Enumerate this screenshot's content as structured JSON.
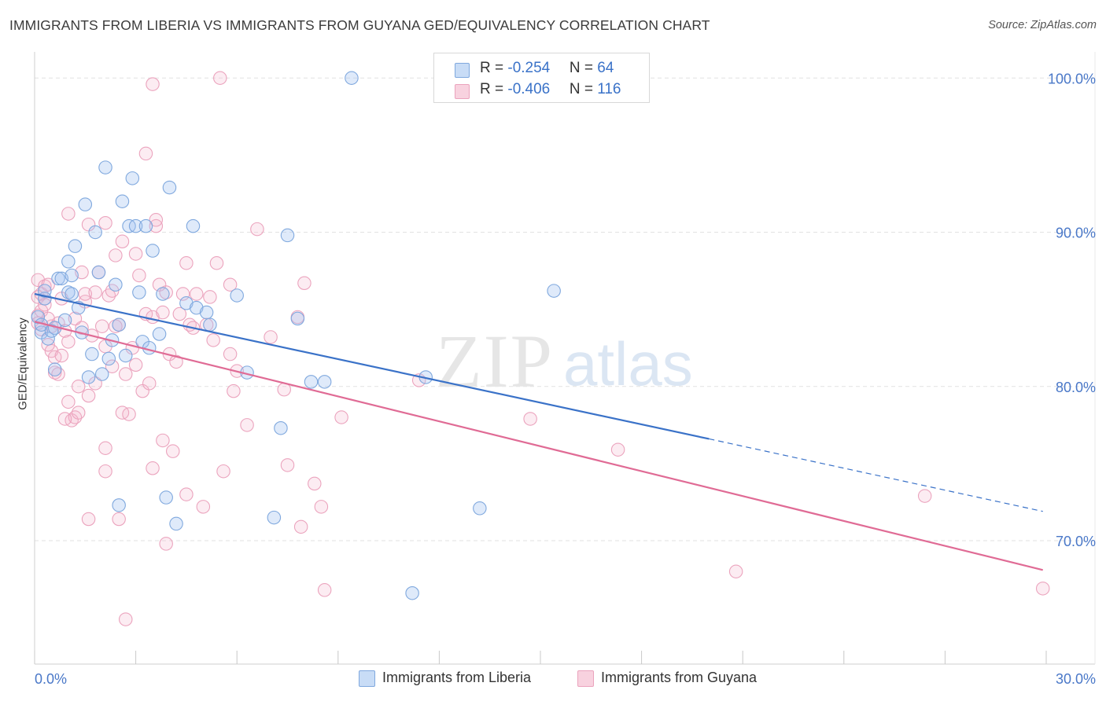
{
  "title": "IMMIGRANTS FROM LIBERIA VS IMMIGRANTS FROM GUYANA GED/EQUIVALENCY CORRELATION CHART",
  "source": "Source: ZipAtlas.com",
  "watermark": {
    "zip": "ZIP",
    "atlas": "atlas"
  },
  "colors": {
    "blue": "#3a72c8",
    "blue_fill": "rgba(164,196,240,0.35)",
    "blue_stroke": "#7fa8de",
    "pink": "#e06b95",
    "pink_fill": "rgba(244,180,202,0.25)",
    "pink_stroke": "#eba3bd",
    "axis_text": "#4a78c8",
    "grid": "#e2e2e2"
  },
  "legend": {
    "rows": [
      {
        "r_label": "R = ",
        "r_value": "-0.254",
        "n_label": "N = ",
        "n_value": "64",
        "color": "blue"
      },
      {
        "r_label": "R = ",
        "r_value": "-0.406",
        "n_label": "N = ",
        "n_value": "116",
        "color": "pink"
      }
    ]
  },
  "bottom_legend": [
    {
      "label": "Immigrants from Liberia",
      "color": "blue"
    },
    {
      "label": "Immigrants from Guyana",
      "color": "pink"
    }
  ],
  "chart_data": {
    "type": "scatter",
    "title": "IMMIGRANTS FROM LIBERIA VS IMMIGRANTS FROM GUYANA GED/EQUIVALENCY CORRELATION CHART",
    "xlabel": "",
    "ylabel": "GED/Equivalency",
    "xlim": [
      0,
      30
    ],
    "ylim": [
      62.0,
      102.0
    ],
    "x_tick_labels": [
      "0.0%",
      "30.0%"
    ],
    "y_ticks": [
      {
        "value": 70,
        "label": "70.0%"
      },
      {
        "value": 80,
        "label": "80.0%"
      },
      {
        "value": 90,
        "label": "90.0%"
      },
      {
        "value": 100,
        "label": "100.0%"
      }
    ],
    "x_minor_ticks": [
      0,
      3,
      6,
      9,
      12,
      15,
      18,
      21,
      24,
      27,
      30
    ],
    "grid": true,
    "legend_placement": "top-center",
    "series": [
      {
        "name": "Immigrants from Liberia",
        "color": "blue",
        "trend": {
          "x0": 0,
          "y0": 86.0,
          "x1": 20.0,
          "y1": 76.6,
          "dash_to_x": 29.9,
          "dash_to_y": 71.9
        },
        "points": [
          [
            0.1,
            84.5
          ],
          [
            0.2,
            83.5
          ],
          [
            0.2,
            84.0
          ],
          [
            0.3,
            85.7
          ],
          [
            0.3,
            86.2
          ],
          [
            0.4,
            83.1
          ],
          [
            0.5,
            83.6
          ],
          [
            0.6,
            83.8
          ],
          [
            0.6,
            81.1
          ],
          [
            0.7,
            87.0
          ],
          [
            0.8,
            87.0
          ],
          [
            0.9,
            84.3
          ],
          [
            1.0,
            88.1
          ],
          [
            1.0,
            86.1
          ],
          [
            1.1,
            87.2
          ],
          [
            1.1,
            86.0
          ],
          [
            1.2,
            89.1
          ],
          [
            1.3,
            85.1
          ],
          [
            1.4,
            83.5
          ],
          [
            1.5,
            91.8
          ],
          [
            1.6,
            80.6
          ],
          [
            1.7,
            82.1
          ],
          [
            1.8,
            90.0
          ],
          [
            1.9,
            87.4
          ],
          [
            2.0,
            80.8
          ],
          [
            2.1,
            94.2
          ],
          [
            2.2,
            81.8
          ],
          [
            2.3,
            83.0
          ],
          [
            2.4,
            86.6
          ],
          [
            2.5,
            84.0
          ],
          [
            2.5,
            72.3
          ],
          [
            2.6,
            92.0
          ],
          [
            2.7,
            82.0
          ],
          [
            2.8,
            90.4
          ],
          [
            2.9,
            93.5
          ],
          [
            3.0,
            90.4
          ],
          [
            3.1,
            86.1
          ],
          [
            3.2,
            82.9
          ],
          [
            3.3,
            90.4
          ],
          [
            3.4,
            82.5
          ],
          [
            3.5,
            88.8
          ],
          [
            3.7,
            83.4
          ],
          [
            3.8,
            86.0
          ],
          [
            3.9,
            72.8
          ],
          [
            4.0,
            92.9
          ],
          [
            4.2,
            71.1
          ],
          [
            4.5,
            85.4
          ],
          [
            4.7,
            90.4
          ],
          [
            4.8,
            85.1
          ],
          [
            5.1,
            84.8
          ],
          [
            5.2,
            84.0
          ],
          [
            6.0,
            85.9
          ],
          [
            6.3,
            80.9
          ],
          [
            7.1,
            71.5
          ],
          [
            7.3,
            77.3
          ],
          [
            7.5,
            89.8
          ],
          [
            7.8,
            84.4
          ],
          [
            8.2,
            80.3
          ],
          [
            8.6,
            80.3
          ],
          [
            9.4,
            100.0
          ],
          [
            11.2,
            66.6
          ],
          [
            11.6,
            80.6
          ],
          [
            13.2,
            72.1
          ],
          [
            15.4,
            86.2
          ]
        ]
      },
      {
        "name": "Immigrants from Guyana",
        "color": "pink",
        "trend": {
          "x0": 0,
          "y0": 84.2,
          "x1": 29.9,
          "y1": 68.1
        },
        "points": [
          [
            0.1,
            86.9
          ],
          [
            0.1,
            85.8
          ],
          [
            0.1,
            84.6
          ],
          [
            0.1,
            84.1
          ],
          [
            0.2,
            86.0
          ],
          [
            0.2,
            84.9
          ],
          [
            0.2,
            83.7
          ],
          [
            0.3,
            85.7
          ],
          [
            0.3,
            86.5
          ],
          [
            0.3,
            85.3
          ],
          [
            0.4,
            86.6
          ],
          [
            0.4,
            84.4
          ],
          [
            0.5,
            83.9
          ],
          [
            0.5,
            82.3
          ],
          [
            0.6,
            81.9
          ],
          [
            0.6,
            80.9
          ],
          [
            0.7,
            80.8
          ],
          [
            0.7,
            84.1
          ],
          [
            0.8,
            82.0
          ],
          [
            0.8,
            85.7
          ],
          [
            0.9,
            83.6
          ],
          [
            1.0,
            79.0
          ],
          [
            1.0,
            82.9
          ],
          [
            1.1,
            77.8
          ],
          [
            1.2,
            78.0
          ],
          [
            1.3,
            78.3
          ],
          [
            1.3,
            80.0
          ],
          [
            1.4,
            83.8
          ],
          [
            1.4,
            87.4
          ],
          [
            1.5,
            85.5
          ],
          [
            1.5,
            86.0
          ],
          [
            1.6,
            79.4
          ],
          [
            1.6,
            71.4
          ],
          [
            1.7,
            83.3
          ],
          [
            1.8,
            86.1
          ],
          [
            1.9,
            87.4
          ],
          [
            2.0,
            83.9
          ],
          [
            2.1,
            82.6
          ],
          [
            2.1,
            76.0
          ],
          [
            2.1,
            74.5
          ],
          [
            2.2,
            85.9
          ],
          [
            2.3,
            86.2
          ],
          [
            2.3,
            81.3
          ],
          [
            2.4,
            88.5
          ],
          [
            2.5,
            84.0
          ],
          [
            2.5,
            71.4
          ],
          [
            2.6,
            78.3
          ],
          [
            2.6,
            89.4
          ],
          [
            2.7,
            80.8
          ],
          [
            2.7,
            64.9
          ],
          [
            2.8,
            78.2
          ],
          [
            2.9,
            82.5
          ],
          [
            3.0,
            81.4
          ],
          [
            3.0,
            88.6
          ],
          [
            3.1,
            87.2
          ],
          [
            3.2,
            79.7
          ],
          [
            3.3,
            84.7
          ],
          [
            3.3,
            95.1
          ],
          [
            3.4,
            80.2
          ],
          [
            3.5,
            84.5
          ],
          [
            3.5,
            74.7
          ],
          [
            3.6,
            90.4
          ],
          [
            3.7,
            86.6
          ],
          [
            3.8,
            84.8
          ],
          [
            3.8,
            76.5
          ],
          [
            3.9,
            69.8
          ],
          [
            4.0,
            82.1
          ],
          [
            4.1,
            75.8
          ],
          [
            4.2,
            81.6
          ],
          [
            4.3,
            84.7
          ],
          [
            4.4,
            86.0
          ],
          [
            4.5,
            73.0
          ],
          [
            4.6,
            84.0
          ],
          [
            4.7,
            83.8
          ],
          [
            4.8,
            86.0
          ],
          [
            5.0,
            72.2
          ],
          [
            5.1,
            84.0
          ],
          [
            5.2,
            85.8
          ],
          [
            5.3,
            83.0
          ],
          [
            5.4,
            88.0
          ],
          [
            5.6,
            74.5
          ],
          [
            5.8,
            86.6
          ],
          [
            5.9,
            79.7
          ],
          [
            6.0,
            81.0
          ],
          [
            6.3,
            77.5
          ],
          [
            6.6,
            90.2
          ],
          [
            7.0,
            83.2
          ],
          [
            7.4,
            79.8
          ],
          [
            7.5,
            74.9
          ],
          [
            7.8,
            84.5
          ],
          [
            7.9,
            70.9
          ],
          [
            8.0,
            86.7
          ],
          [
            8.3,
            73.7
          ],
          [
            8.5,
            72.2
          ],
          [
            8.6,
            66.8
          ],
          [
            9.1,
            78.0
          ],
          [
            11.4,
            80.4
          ],
          [
            14.7,
            77.9
          ],
          [
            17.3,
            75.9
          ],
          [
            20.8,
            68.0
          ],
          [
            26.4,
            72.9
          ],
          [
            29.9,
            66.9
          ],
          [
            2.1,
            90.6
          ],
          [
            3.5,
            99.6
          ],
          [
            5.5,
            100.0
          ],
          [
            1.6,
            90.5
          ],
          [
            3.6,
            90.8
          ],
          [
            1.0,
            91.2
          ],
          [
            0.4,
            82.7
          ],
          [
            1.2,
            84.4
          ],
          [
            2.4,
            83.9
          ],
          [
            3.9,
            86.1
          ],
          [
            4.5,
            88.0
          ],
          [
            5.8,
            82.1
          ],
          [
            1.8,
            80.2
          ],
          [
            0.9,
            77.9
          ]
        ]
      }
    ]
  }
}
